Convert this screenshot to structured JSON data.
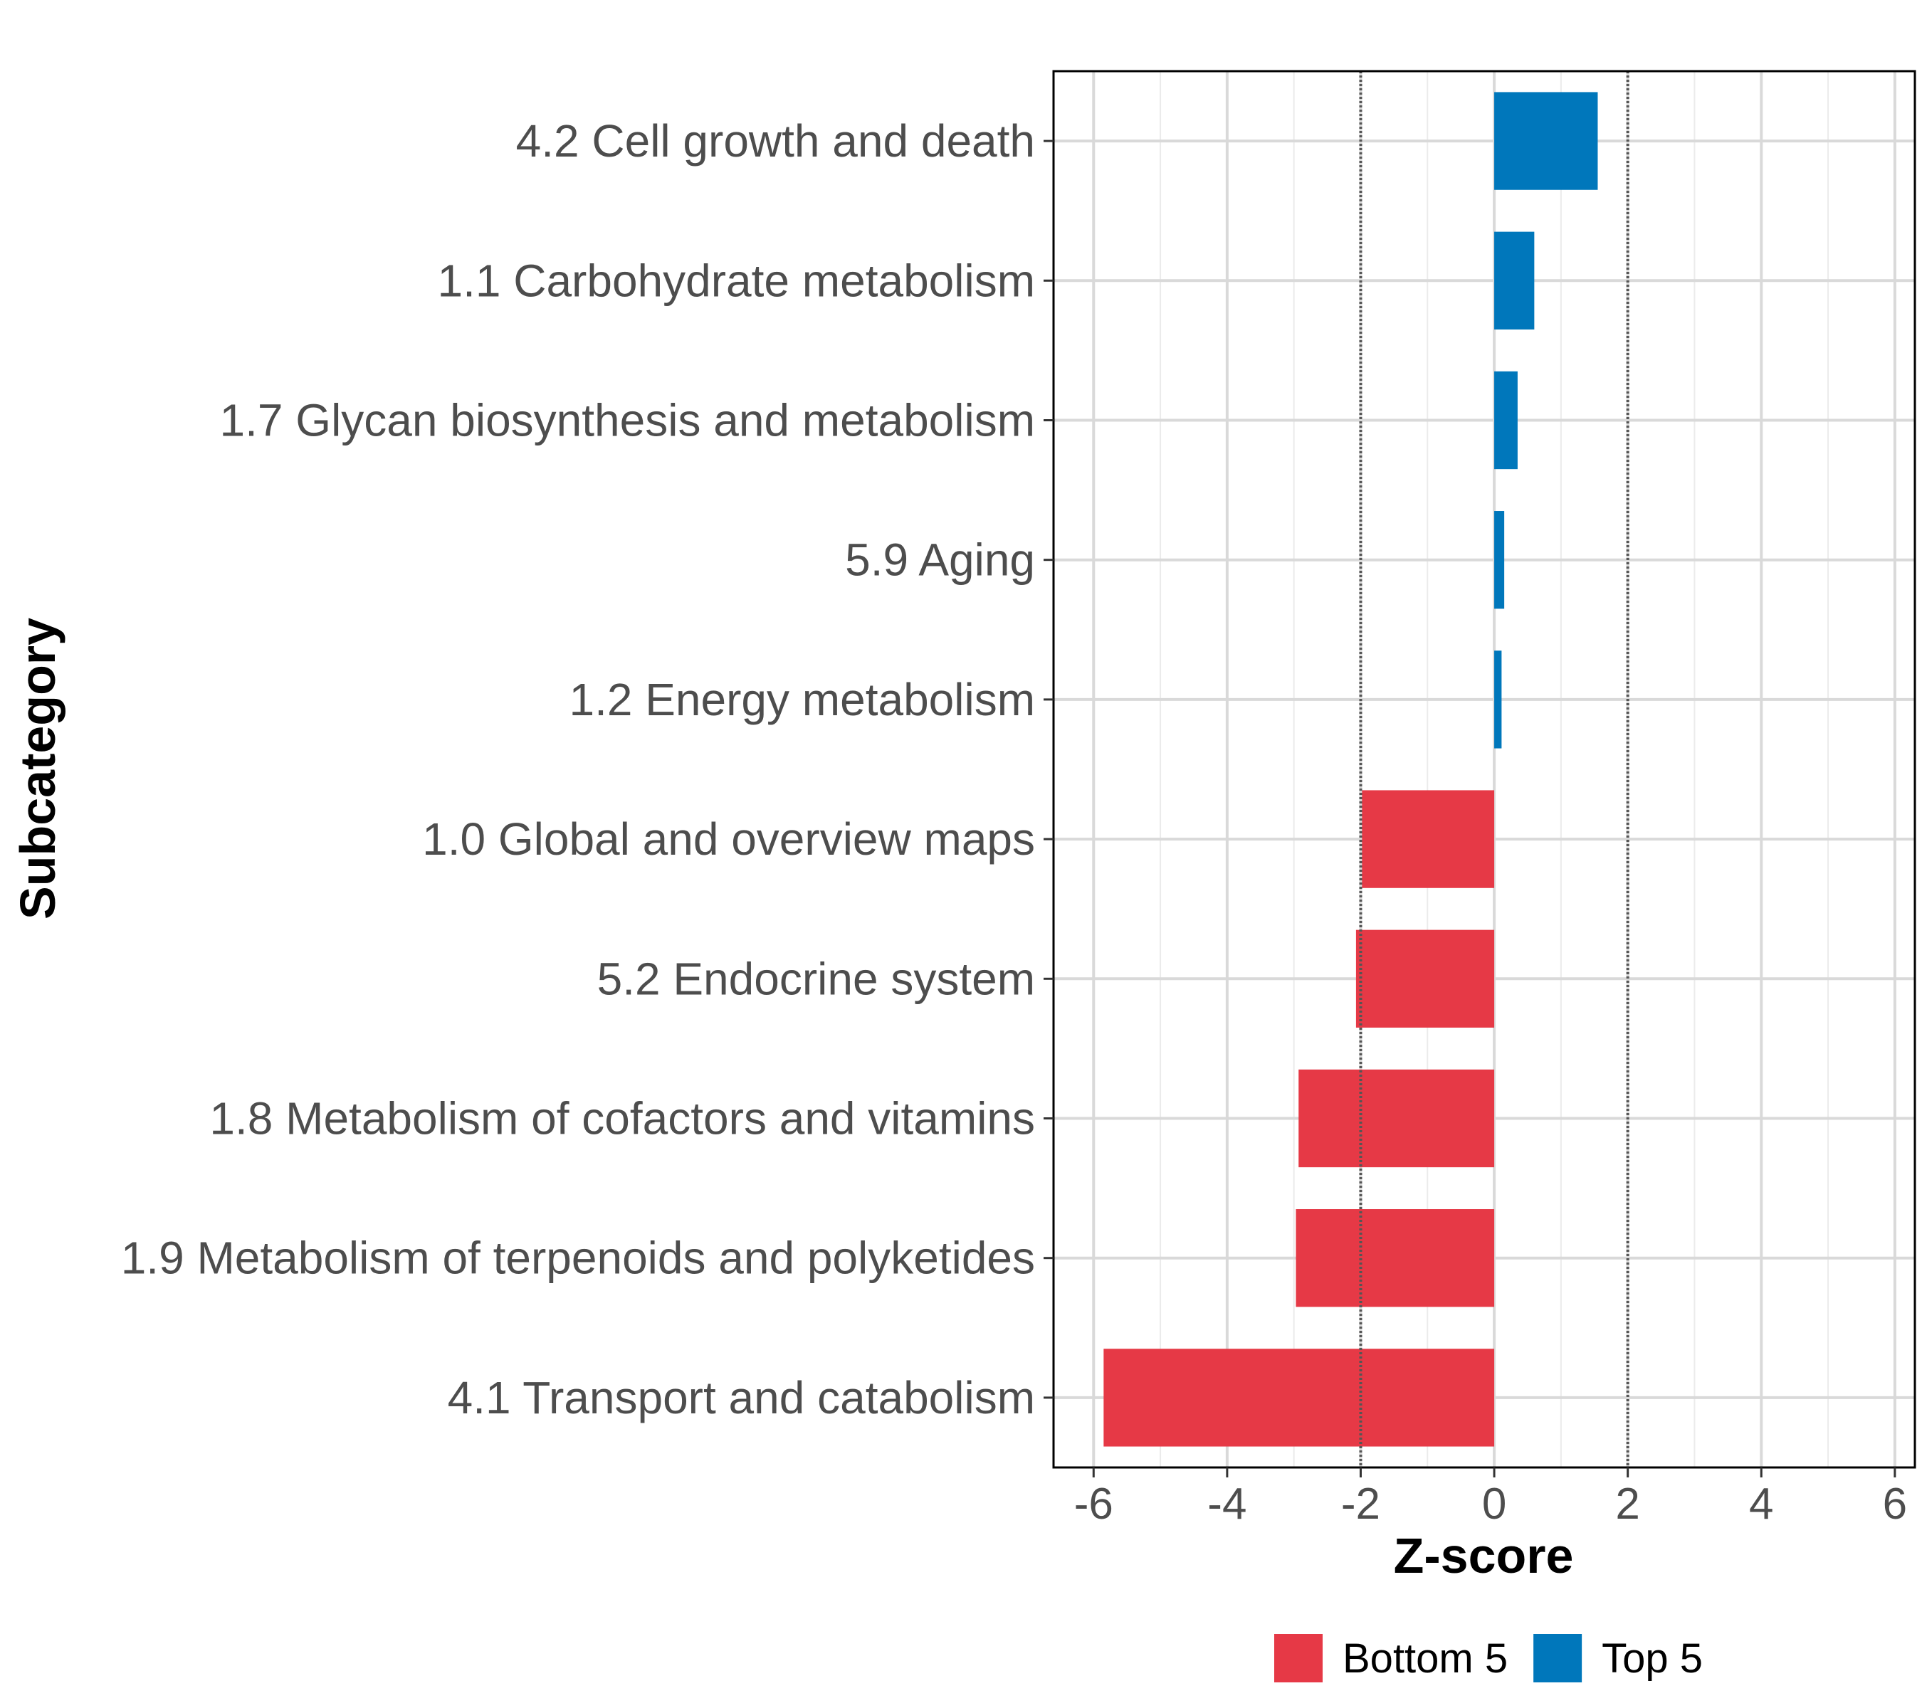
{
  "chart_data": {
    "type": "bar",
    "orientation": "horizontal",
    "title": "",
    "xlabel": "Z-score",
    "ylabel": "Subcategory",
    "xlim": [
      -6.6,
      6.3
    ],
    "xticks": [
      -6,
      -4,
      -2,
      0,
      2,
      4,
      6
    ],
    "xtick_labels": [
      "-6",
      "-4",
      "-2",
      "0",
      "2",
      "4",
      "6"
    ],
    "reference_lines": [
      -2,
      2
    ],
    "grid": true,
    "legend_position": "bottom",
    "categories": [
      "4.2 Cell growth and death",
      "1.1 Carbohydrate metabolism",
      "1.7 Glycan biosynthesis and metabolism",
      "5.9 Aging",
      "1.2 Energy metabolism",
      "1.0 Global and overview maps",
      "5.2 Endocrine system",
      "1.8 Metabolism of cofactors and vitamins",
      "1.9 Metabolism of terpenoids and polyketides",
      "4.1 Transport and catabolism"
    ],
    "values": [
      1.55,
      0.6,
      0.35,
      0.15,
      0.11,
      -1.98,
      -2.07,
      -2.93,
      -2.97,
      -5.85
    ],
    "groups": [
      "Top 5",
      "Top 5",
      "Top 5",
      "Top 5",
      "Top 5",
      "Bottom 5",
      "Bottom 5",
      "Bottom 5",
      "Bottom 5",
      "Bottom 5"
    ],
    "legend": [
      {
        "name": "Bottom 5",
        "color": "#e63946"
      },
      {
        "name": "Top 5",
        "color": "#0077bb"
      }
    ]
  }
}
